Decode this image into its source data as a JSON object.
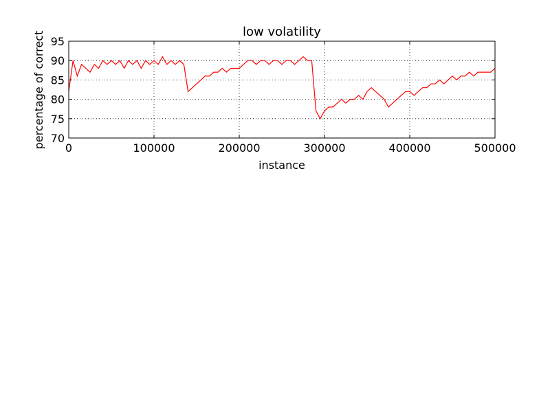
{
  "chart_data": {
    "type": "line",
    "title": "low volatility",
    "xlabel": "instance",
    "ylabel": "percentage of correct",
    "x": [
      0,
      5000,
      10000,
      15000,
      20000,
      25000,
      30000,
      35000,
      40000,
      45000,
      50000,
      55000,
      60000,
      65000,
      70000,
      75000,
      80000,
      85000,
      90000,
      95000,
      100000,
      105000,
      110000,
      115000,
      120000,
      125000,
      130000,
      135000,
      140000,
      145000,
      150000,
      155000,
      160000,
      165000,
      170000,
      175000,
      180000,
      185000,
      190000,
      195000,
      200000,
      205000,
      210000,
      215000,
      220000,
      225000,
      230000,
      235000,
      240000,
      245000,
      250000,
      255000,
      260000,
      265000,
      270000,
      275000,
      280000,
      285000,
      290000,
      295000,
      300000,
      305000,
      310000,
      315000,
      320000,
      325000,
      330000,
      335000,
      340000,
      345000,
      350000,
      355000,
      360000,
      365000,
      370000,
      375000,
      380000,
      385000,
      390000,
      395000,
      400000,
      405000,
      410000,
      415000,
      420000,
      425000,
      430000,
      435000,
      440000,
      445000,
      450000,
      455000,
      460000,
      465000,
      470000,
      475000,
      480000,
      485000,
      490000,
      495000,
      500000
    ],
    "series": [
      {
        "name": "percentage of correct",
        "color": "#ff0000",
        "values": [
          82,
          90,
          86,
          89,
          88,
          87,
          89,
          88,
          90,
          89,
          90,
          89,
          90,
          88,
          90,
          89,
          90,
          88,
          90,
          89,
          90,
          89,
          91,
          89,
          90,
          89,
          90,
          89,
          82,
          83,
          84,
          85,
          86,
          86,
          87,
          87,
          88,
          87,
          88,
          88,
          88,
          89,
          90,
          90,
          89,
          90,
          90,
          89,
          90,
          90,
          89,
          90,
          90,
          89,
          90,
          91,
          90,
          90,
          77,
          75,
          77,
          78,
          78,
          79,
          80,
          79,
          80,
          80,
          81,
          80,
          82,
          83,
          82,
          81,
          80,
          78,
          79,
          80,
          81,
          82,
          82,
          81,
          82,
          83,
          83,
          84,
          84,
          85,
          84,
          85,
          86,
          85,
          86,
          86,
          87,
          86,
          87,
          87,
          87,
          87,
          88
        ]
      }
    ],
    "xlim": [
      0,
      500000
    ],
    "xticks": [
      0,
      100000,
      200000,
      300000,
      400000,
      500000
    ],
    "ylim": [
      70,
      95
    ],
    "yticks": [
      70,
      75,
      80,
      85,
      90,
      95
    ],
    "grid": true
  }
}
